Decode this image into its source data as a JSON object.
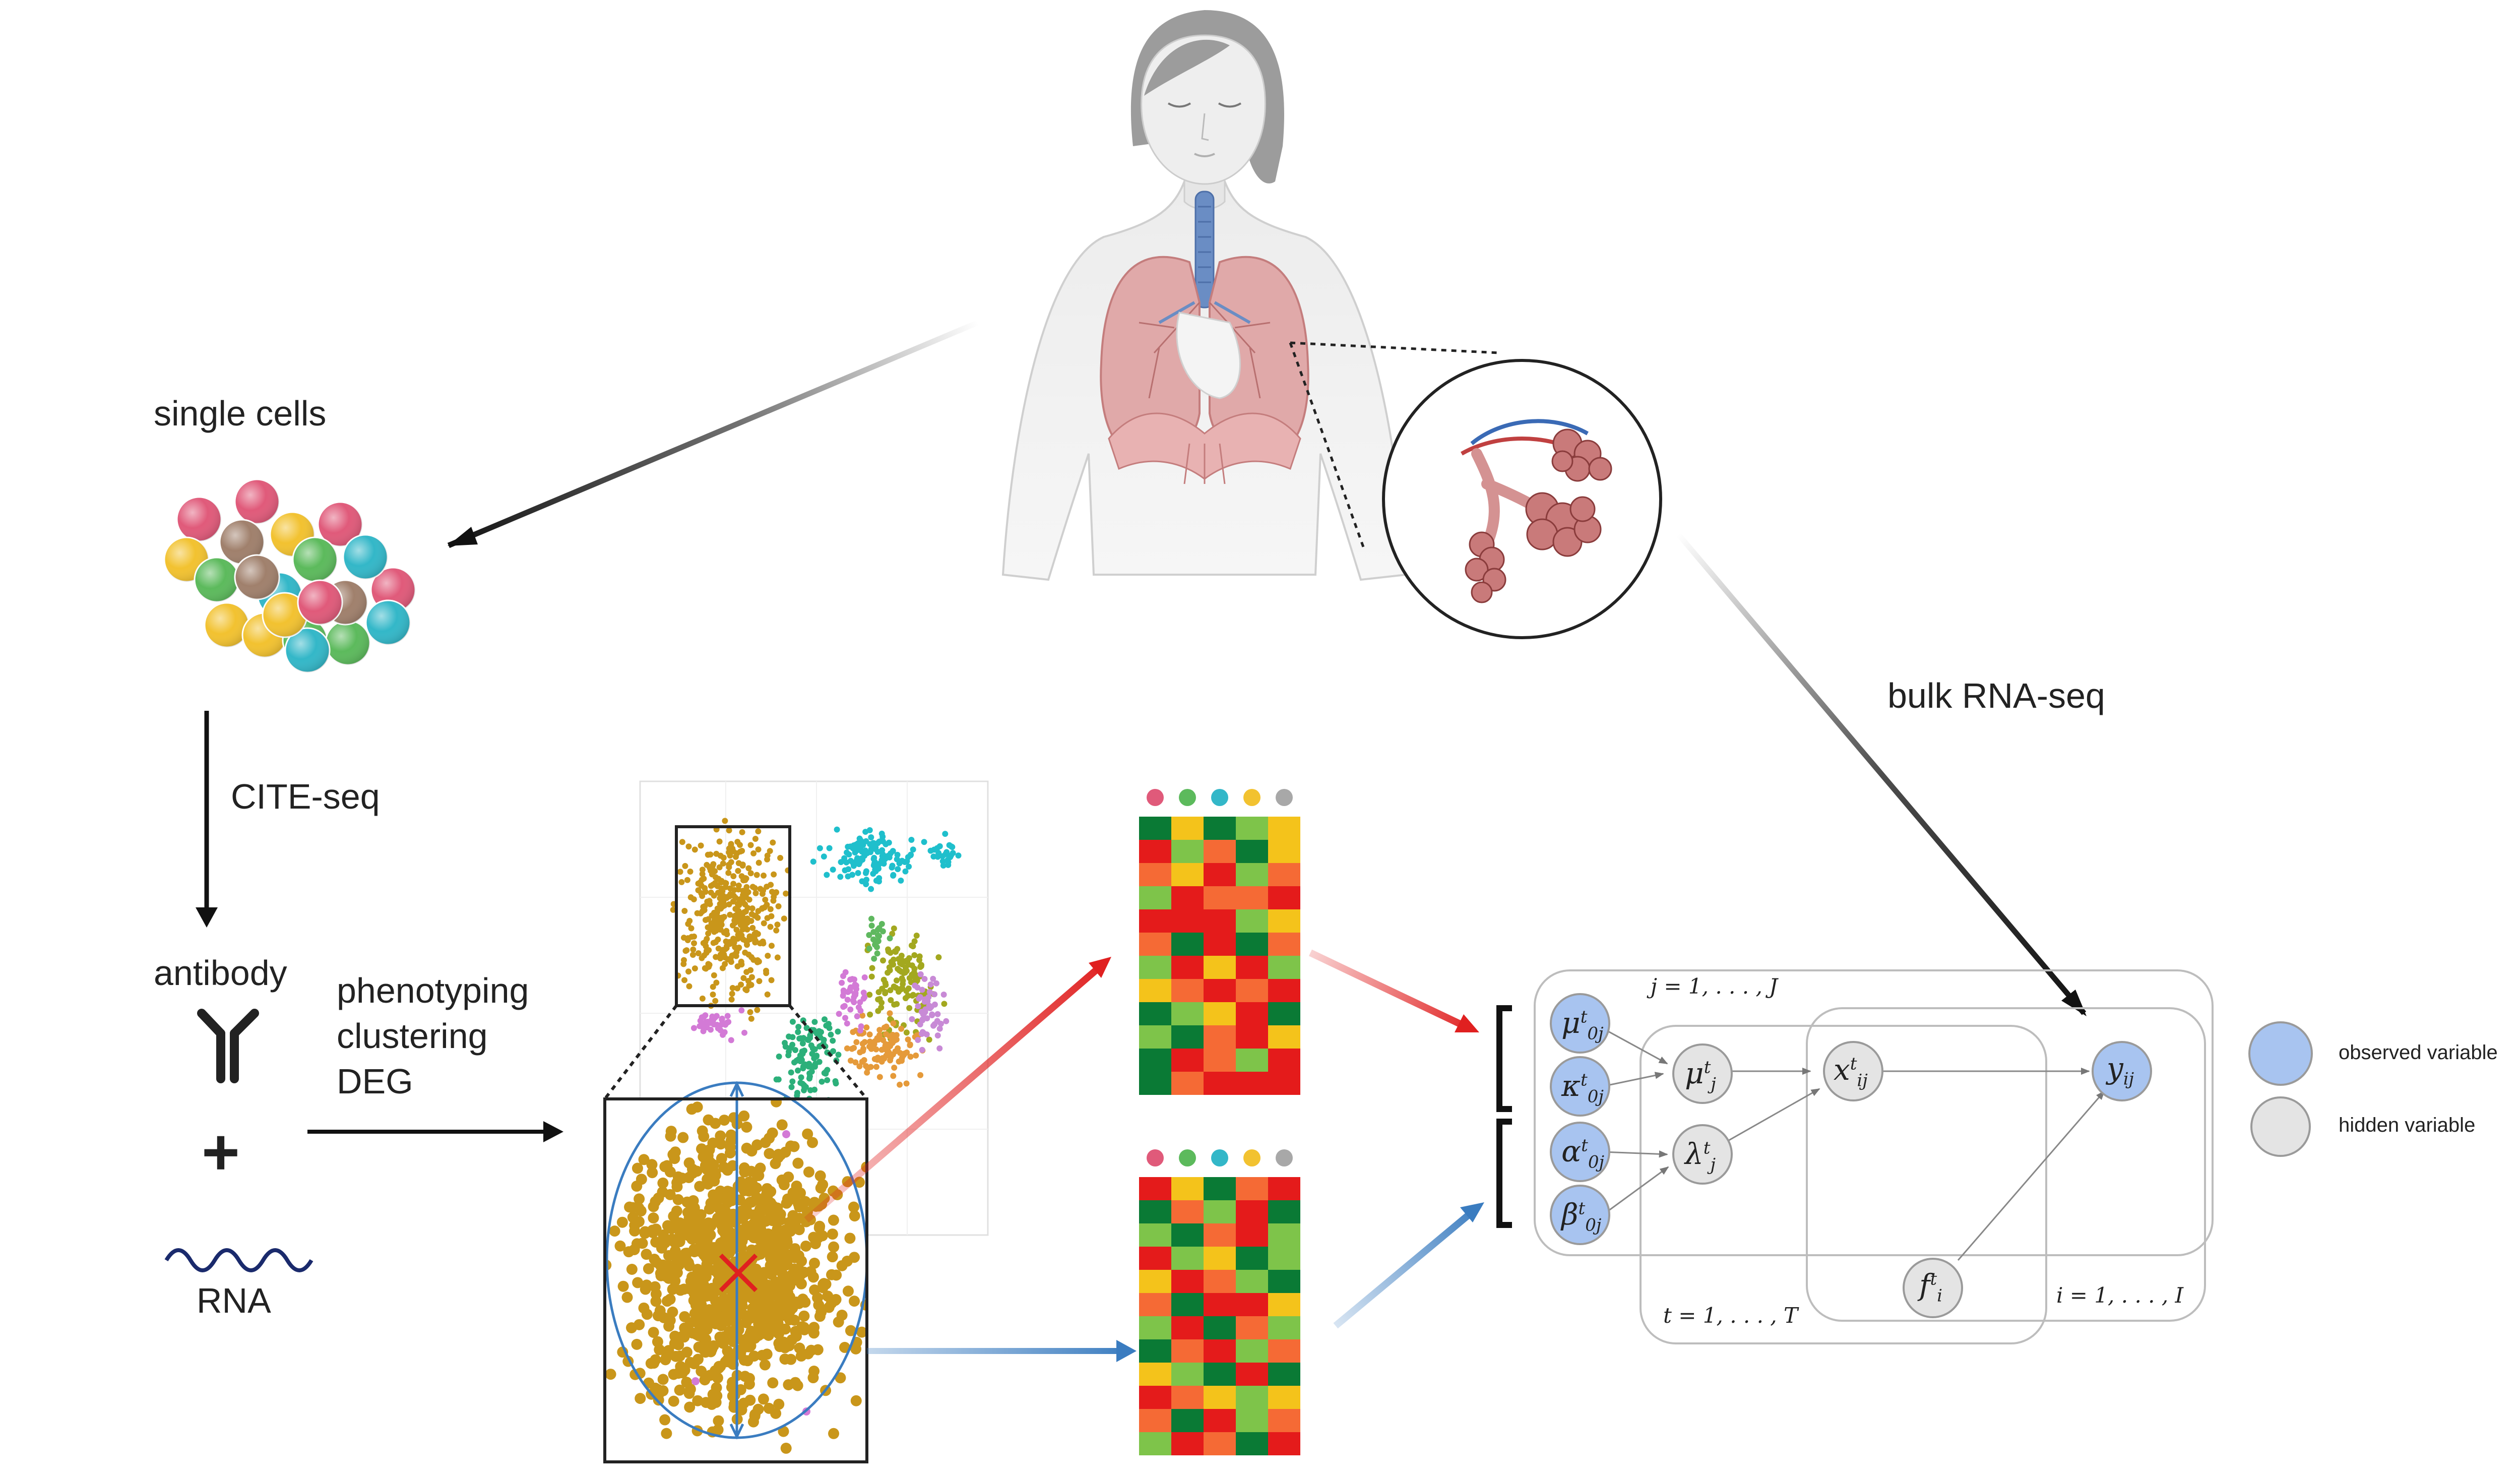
{
  "labels": {
    "single_cells": "single cells",
    "cite_seq": "CITE-seq",
    "antibody": "antibody",
    "plus": "+",
    "rna": "RNA",
    "phenotyping": "phenotyping",
    "clustering": "clustering",
    "deg": "DEG",
    "bulk_rna_seq": "bulk RNA-seq"
  },
  "model": {
    "plate_j": "j = 1, . . . , J",
    "plate_t": "t = 1, . . . , T",
    "plate_i": "i = 1, . . . , I",
    "nodes": {
      "mu0": "μ",
      "kappa0": "κ",
      "alpha0": "α",
      "beta0": "β",
      "mu": "μ",
      "lambda": "λ",
      "x": "x",
      "y": "y",
      "f": "f"
    }
  },
  "legend": {
    "observed": "observed variable",
    "hidden": "hidden variable"
  },
  "colors": {
    "cell_palette": [
      "#e05a7a",
      "#f2c230",
      "#5cba5c",
      "#33b7c8",
      "#a0806c"
    ],
    "heatmap_palette": [
      "#0a7a35",
      "#7ec44a",
      "#f4c31b",
      "#f56a35",
      "#e41b1b"
    ],
    "observed_node": "#a8c4f0",
    "hidden_node": "#e4e4e4",
    "red_arrow": "#e02020",
    "blue_arrow": "#3a7cc0",
    "cluster_gold": "#c9961a"
  }
}
